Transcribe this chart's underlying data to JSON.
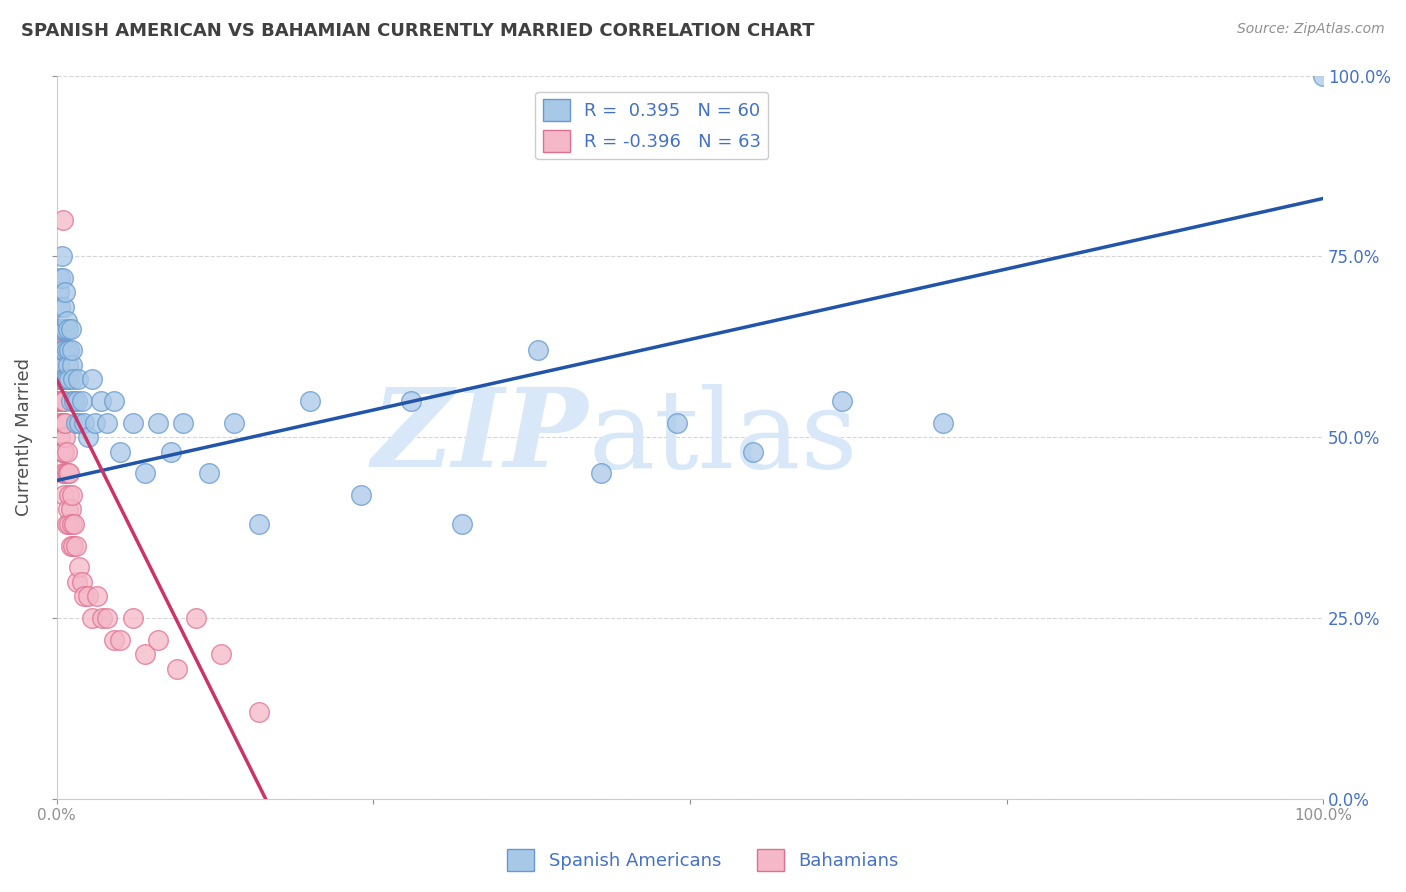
{
  "title": "SPANISH AMERICAN VS BAHAMIAN CURRENTLY MARRIED CORRELATION CHART",
  "source": "Source: ZipAtlas.com",
  "ylabel": "Currently Married",
  "yticks": [
    0.0,
    0.25,
    0.5,
    0.75,
    1.0
  ],
  "ytick_labels": [
    "0.0%",
    "25.0%",
    "50.0%",
    "75.0%",
    "100.0%"
  ],
  "xtick_labels": [
    "0.0%",
    "",
    "",
    "",
    "100.0%"
  ],
  "blue_R": 0.395,
  "blue_N": 60,
  "pink_R": -0.396,
  "pink_N": 63,
  "blue_dot_color": "#A8C8E8",
  "blue_dot_edge": "#6699CC",
  "pink_dot_color": "#F4B8C8",
  "pink_dot_edge": "#E07090",
  "blue_line_color": "#2255AA",
  "pink_line_color": "#CC3366",
  "legend_text_color": "#4472C4",
  "watermark_zip": "ZIP",
  "watermark_atlas": "atlas",
  "watermark_color": "#D8E8F8",
  "background_color": "#FFFFFF",
  "grid_color": "#CCCCCC",
  "title_color": "#404040",
  "source_color": "#909090",
  "blue_x": [
    0.001,
    0.002,
    0.002,
    0.003,
    0.003,
    0.004,
    0.004,
    0.005,
    0.005,
    0.005,
    0.006,
    0.006,
    0.007,
    0.007,
    0.007,
    0.008,
    0.008,
    0.008,
    0.009,
    0.009,
    0.01,
    0.01,
    0.011,
    0.011,
    0.012,
    0.012,
    0.013,
    0.014,
    0.015,
    0.016,
    0.017,
    0.018,
    0.02,
    0.022,
    0.025,
    0.028,
    0.03,
    0.035,
    0.04,
    0.045,
    0.05,
    0.06,
    0.07,
    0.08,
    0.09,
    0.1,
    0.12,
    0.14,
    0.16,
    0.2,
    0.24,
    0.28,
    0.32,
    0.38,
    0.43,
    0.49,
    0.55,
    0.62,
    0.7,
    1.0
  ],
  "blue_y": [
    0.65,
    0.7,
    0.6,
    0.72,
    0.68,
    0.62,
    0.75,
    0.65,
    0.58,
    0.72,
    0.62,
    0.68,
    0.58,
    0.65,
    0.7,
    0.62,
    0.66,
    0.58,
    0.6,
    0.65,
    0.58,
    0.62,
    0.65,
    0.55,
    0.6,
    0.62,
    0.58,
    0.55,
    0.52,
    0.55,
    0.58,
    0.52,
    0.55,
    0.52,
    0.5,
    0.58,
    0.52,
    0.55,
    0.52,
    0.55,
    0.48,
    0.52,
    0.45,
    0.52,
    0.48,
    0.52,
    0.45,
    0.52,
    0.38,
    0.55,
    0.42,
    0.55,
    0.38,
    0.62,
    0.45,
    0.52,
    0.48,
    0.55,
    0.52,
    1.0
  ],
  "pink_x": [
    0.001,
    0.001,
    0.001,
    0.002,
    0.002,
    0.002,
    0.002,
    0.002,
    0.003,
    0.003,
    0.003,
    0.003,
    0.003,
    0.004,
    0.004,
    0.004,
    0.004,
    0.005,
    0.005,
    0.005,
    0.005,
    0.005,
    0.006,
    0.006,
    0.006,
    0.006,
    0.007,
    0.007,
    0.007,
    0.008,
    0.008,
    0.008,
    0.009,
    0.009,
    0.01,
    0.01,
    0.01,
    0.011,
    0.011,
    0.012,
    0.012,
    0.013,
    0.014,
    0.015,
    0.016,
    0.018,
    0.02,
    0.022,
    0.025,
    0.028,
    0.032,
    0.036,
    0.04,
    0.045,
    0.05,
    0.06,
    0.07,
    0.08,
    0.095,
    0.11,
    0.13,
    0.16,
    0.005
  ],
  "pink_y": [
    0.6,
    0.55,
    0.65,
    0.55,
    0.6,
    0.58,
    0.52,
    0.65,
    0.55,
    0.58,
    0.62,
    0.5,
    0.55,
    0.52,
    0.58,
    0.55,
    0.48,
    0.55,
    0.52,
    0.48,
    0.55,
    0.45,
    0.52,
    0.48,
    0.55,
    0.42,
    0.5,
    0.45,
    0.52,
    0.48,
    0.45,
    0.38,
    0.45,
    0.4,
    0.45,
    0.38,
    0.42,
    0.35,
    0.4,
    0.38,
    0.42,
    0.35,
    0.38,
    0.35,
    0.3,
    0.32,
    0.3,
    0.28,
    0.28,
    0.25,
    0.28,
    0.25,
    0.25,
    0.22,
    0.22,
    0.25,
    0.2,
    0.22,
    0.18,
    0.25,
    0.2,
    0.12,
    0.8
  ],
  "blue_line_x0": 0.0,
  "blue_line_y0": 0.44,
  "blue_line_x1": 1.0,
  "blue_line_y1": 0.83,
  "pink_line_x0": 0.0,
  "pink_line_y0": 0.58,
  "pink_line_x1": 0.165,
  "pink_line_y1": 0.0,
  "xmin": 0.0,
  "xmax": 1.0,
  "ymin": 0.0,
  "ymax": 1.0
}
